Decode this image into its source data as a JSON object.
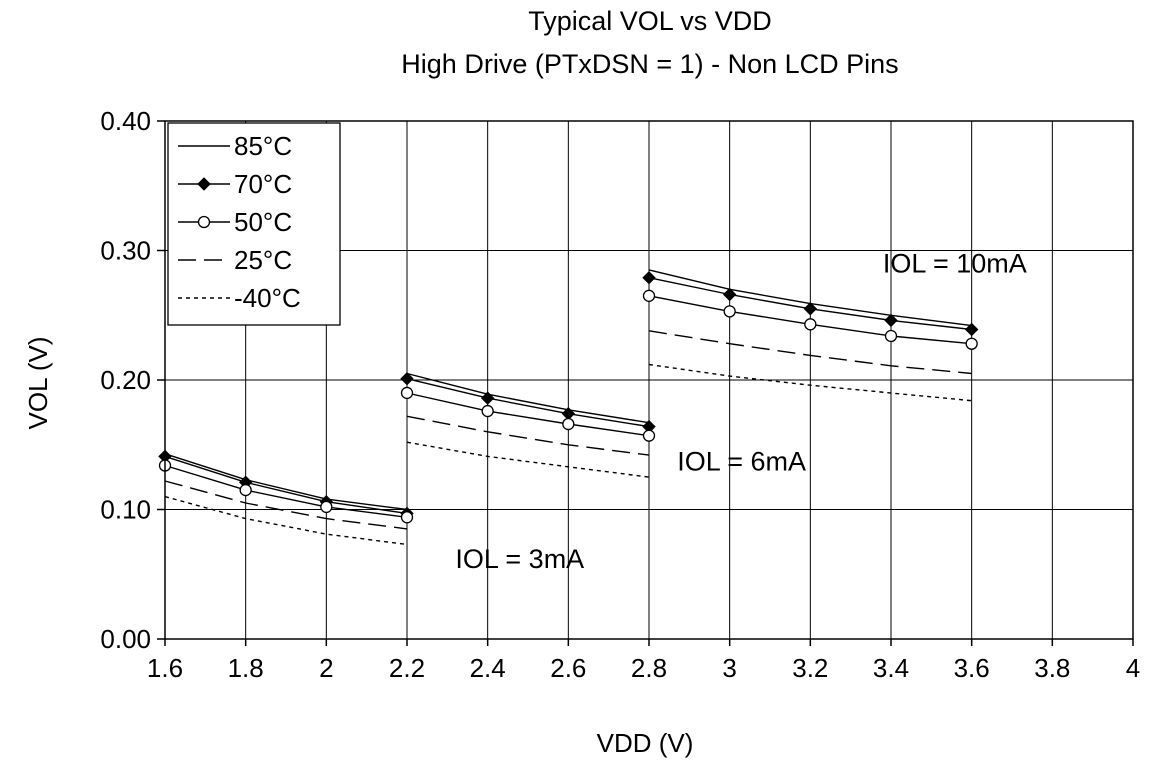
{
  "chart_data": {
    "type": "line",
    "title": "Typical VOL vs VDD",
    "subtitle": "High Drive (PTxDSN = 1) - Non LCD Pins",
    "xlabel": "VDD (V)",
    "ylabel": "VOL (V)",
    "xlim": [
      1.6,
      4
    ],
    "ylim": [
      0,
      0.4
    ],
    "x_ticks": [
      "1.6",
      "1.8",
      "2",
      "2.2",
      "2.4",
      "2.6",
      "2.8",
      "3",
      "3.2",
      "3.4",
      "3.6",
      "3.8",
      "4"
    ],
    "y_ticks": [
      "0.00",
      "0.10",
      "0.20",
      "0.30",
      "0.40"
    ],
    "grid": true,
    "legend_position": "top-left",
    "series": [
      {
        "name": "85°C",
        "marker": "none",
        "dash": "solid",
        "groups": [
          {
            "x": [
              1.6,
              1.8,
              2.0,
              2.2
            ],
            "y": [
              0.143,
              0.123,
              0.108,
              0.1
            ]
          },
          {
            "x": [
              2.2,
              2.4,
              2.6,
              2.8
            ],
            "y": [
              0.205,
              0.189,
              0.177,
              0.167
            ]
          },
          {
            "x": [
              2.8,
              3.0,
              3.2,
              3.4,
              3.6
            ],
            "y": [
              0.285,
              0.27,
              0.259,
              0.25,
              0.242
            ]
          }
        ]
      },
      {
        "name": "70°C",
        "marker": "diamond",
        "dash": "solid",
        "groups": [
          {
            "x": [
              1.6,
              1.8,
              2.0,
              2.2
            ],
            "y": [
              0.141,
              0.121,
              0.106,
              0.097
            ]
          },
          {
            "x": [
              2.2,
              2.4,
              2.6,
              2.8
            ],
            "y": [
              0.201,
              0.186,
              0.174,
              0.164
            ]
          },
          {
            "x": [
              2.8,
              3.0,
              3.2,
              3.4,
              3.6
            ],
            "y": [
              0.279,
              0.266,
              0.255,
              0.246,
              0.239
            ]
          }
        ]
      },
      {
        "name": "50°C",
        "marker": "circle",
        "dash": "solid",
        "groups": [
          {
            "x": [
              1.6,
              1.8,
              2.0,
              2.2
            ],
            "y": [
              0.134,
              0.115,
              0.102,
              0.094
            ]
          },
          {
            "x": [
              2.2,
              2.4,
              2.6,
              2.8
            ],
            "y": [
              0.19,
              0.176,
              0.166,
              0.157
            ]
          },
          {
            "x": [
              2.8,
              3.0,
              3.2,
              3.4,
              3.6
            ],
            "y": [
              0.265,
              0.253,
              0.243,
              0.234,
              0.228
            ]
          }
        ]
      },
      {
        "name": "25°C",
        "marker": "none",
        "dash": "dashed",
        "groups": [
          {
            "x": [
              1.6,
              1.8,
              2.0,
              2.2
            ],
            "y": [
              0.122,
              0.105,
              0.093,
              0.085
            ]
          },
          {
            "x": [
              2.2,
              2.4,
              2.6,
              2.8
            ],
            "y": [
              0.172,
              0.16,
              0.15,
              0.142
            ]
          },
          {
            "x": [
              2.8,
              3.0,
              3.2,
              3.4,
              3.6
            ],
            "y": [
              0.238,
              0.228,
              0.219,
              0.211,
              0.205
            ]
          }
        ]
      },
      {
        "name": "-40°C",
        "marker": "none",
        "dash": "dotted",
        "groups": [
          {
            "x": [
              1.6,
              1.8,
              2.0,
              2.2
            ],
            "y": [
              0.11,
              0.093,
              0.081,
              0.073
            ]
          },
          {
            "x": [
              2.2,
              2.4,
              2.6,
              2.8
            ],
            "y": [
              0.152,
              0.141,
              0.133,
              0.125
            ]
          },
          {
            "x": [
              2.8,
              3.0,
              3.2,
              3.4,
              3.6
            ],
            "y": [
              0.212,
              0.203,
              0.196,
              0.19,
              0.184
            ]
          }
        ]
      }
    ],
    "annotations": [
      {
        "text": "IOL = 3mA",
        "x": 2.32,
        "y": 0.055
      },
      {
        "text": "IOL = 6mA",
        "x": 2.87,
        "y": 0.13
      },
      {
        "text": "IOL = 10mA",
        "x": 3.38,
        "y": 0.283
      }
    ]
  }
}
